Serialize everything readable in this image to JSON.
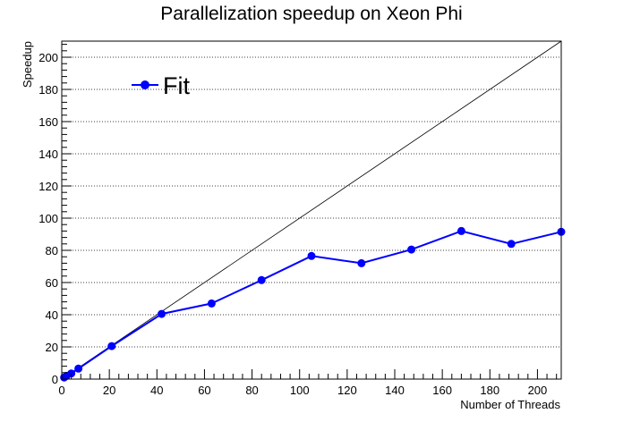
{
  "chart_data": {
    "type": "line",
    "title": "Parallelization speedup on Xeon Phi",
    "xlabel": "Number of Threads",
    "ylabel": "Speedup",
    "xlim": [
      0,
      210
    ],
    "ylim": [
      0,
      210
    ],
    "xticks": [
      0,
      20,
      40,
      60,
      80,
      100,
      120,
      140,
      160,
      180,
      200
    ],
    "yticks": [
      0,
      20,
      40,
      60,
      80,
      100,
      120,
      140,
      160,
      180,
      200
    ],
    "grid": "horizontal",
    "legend": {
      "placement": "top-left",
      "entries": [
        "Fit"
      ]
    },
    "series": [
      {
        "name": "Fit",
        "color": "#0000ff",
        "x": [
          1,
          2,
          4,
          7,
          21,
          42,
          63,
          84,
          105,
          126,
          147,
          168,
          189,
          210
        ],
        "y": [
          1,
          2,
          3.5,
          6.5,
          20.5,
          40.5,
          47,
          61.5,
          76.5,
          72,
          80.5,
          92,
          84,
          91.5
        ]
      }
    ],
    "reference_line": {
      "color": "#000000",
      "x": [
        0,
        210
      ],
      "y": [
        0,
        210
      ]
    }
  }
}
